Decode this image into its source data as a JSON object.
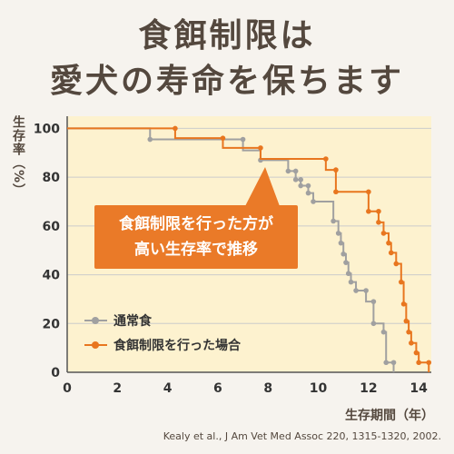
{
  "title_lines": [
    "食餌制限は",
    "愛犬の寿命を保ちます"
  ],
  "callout_lines": [
    "食餌制限を行った方が",
    "高い生存率で推移"
  ],
  "citation": "Kealy et al., J Am Vet Med Assoc 220, 1315-1320, 2002.",
  "colors": {
    "control": "#a0a0a0",
    "restricted": "#e8761f",
    "plot_bg": "#fdf2cf"
  },
  "chart_data": {
    "type": "line",
    "xlabel": "生存期間（年）",
    "ylabel": "生存率（%）",
    "xlim": [
      0,
      14.5
    ],
    "ylim": [
      0,
      105
    ],
    "xticks": [
      0,
      2,
      4,
      6,
      8,
      10,
      12,
      14
    ],
    "yticks": [
      0,
      20,
      40,
      60,
      80,
      100
    ],
    "legend_position": "bottom-left",
    "series": [
      {
        "name": "通常食",
        "color": "#a0a0a0",
        "points": [
          [
            0,
            100
          ],
          [
            3.3,
            100
          ],
          [
            3.3,
            95.5
          ],
          [
            7,
            95.5
          ],
          [
            7,
            91
          ],
          [
            7.7,
            91
          ],
          [
            7.7,
            87
          ],
          [
            8.8,
            87
          ],
          [
            8.8,
            82.5
          ],
          [
            9.1,
            82.5
          ],
          [
            9.1,
            79
          ],
          [
            9.3,
            79
          ],
          [
            9.3,
            76.5
          ],
          [
            9.6,
            76.5
          ],
          [
            9.6,
            73.5
          ],
          [
            9.8,
            73.5
          ],
          [
            9.8,
            70
          ],
          [
            10.6,
            70
          ],
          [
            10.6,
            62
          ],
          [
            10.8,
            62
          ],
          [
            10.8,
            57
          ],
          [
            10.9,
            57
          ],
          [
            10.9,
            53
          ],
          [
            11.0,
            53
          ],
          [
            11.0,
            48.5
          ],
          [
            11.1,
            48.5
          ],
          [
            11.1,
            45
          ],
          [
            11.2,
            45
          ],
          [
            11.2,
            40.5
          ],
          [
            11.3,
            40.5
          ],
          [
            11.3,
            37
          ],
          [
            11.5,
            37
          ],
          [
            11.5,
            33.5
          ],
          [
            11.9,
            33.5
          ],
          [
            11.9,
            29
          ],
          [
            12.2,
            29
          ],
          [
            12.2,
            20
          ],
          [
            12.6,
            20
          ],
          [
            12.6,
            16.5
          ],
          [
            12.7,
            16.5
          ],
          [
            12.7,
            4
          ],
          [
            13.0,
            4
          ],
          [
            13.0,
            0
          ]
        ],
        "markers": [
          [
            3.3,
            95.5
          ],
          [
            7,
            95.5
          ],
          [
            7.7,
            87
          ],
          [
            8.8,
            82.5
          ],
          [
            9.1,
            82.5
          ],
          [
            9.1,
            79
          ],
          [
            9.3,
            79
          ],
          [
            9.3,
            76.5
          ],
          [
            9.6,
            76.5
          ],
          [
            9.6,
            73.5
          ],
          [
            9.8,
            70
          ],
          [
            10.6,
            62
          ],
          [
            10.8,
            57
          ],
          [
            10.9,
            53
          ],
          [
            11.0,
            48.5
          ],
          [
            11.1,
            45
          ],
          [
            11.2,
            40.5
          ],
          [
            11.3,
            37
          ],
          [
            11.5,
            33.5
          ],
          [
            11.9,
            33.5
          ],
          [
            12.2,
            29
          ],
          [
            12.2,
            20
          ],
          [
            12.6,
            16.5
          ],
          [
            12.7,
            4
          ],
          [
            13.0,
            4
          ]
        ]
      },
      {
        "name": "食餌制限を行った場合",
        "color": "#e8761f",
        "points": [
          [
            0,
            100
          ],
          [
            4.3,
            100
          ],
          [
            4.3,
            96
          ],
          [
            6.2,
            96
          ],
          [
            6.2,
            92
          ],
          [
            7.7,
            92
          ],
          [
            7.7,
            87.5
          ],
          [
            10.3,
            87.5
          ],
          [
            10.3,
            83
          ],
          [
            10.7,
            83
          ],
          [
            10.7,
            74
          ],
          [
            12.0,
            74
          ],
          [
            12.0,
            66
          ],
          [
            12.4,
            66
          ],
          [
            12.4,
            61.5
          ],
          [
            12.6,
            61.5
          ],
          [
            12.6,
            57
          ],
          [
            12.8,
            57
          ],
          [
            12.8,
            53
          ],
          [
            12.9,
            53
          ],
          [
            12.9,
            49
          ],
          [
            13.1,
            49
          ],
          [
            13.1,
            44.5
          ],
          [
            13.3,
            44.5
          ],
          [
            13.3,
            37
          ],
          [
            13.4,
            37
          ],
          [
            13.4,
            28
          ],
          [
            13.5,
            28
          ],
          [
            13.5,
            21
          ],
          [
            13.6,
            21
          ],
          [
            13.6,
            16.5
          ],
          [
            13.7,
            16.5
          ],
          [
            13.7,
            12
          ],
          [
            13.9,
            12
          ],
          [
            13.9,
            8
          ],
          [
            14.0,
            8
          ],
          [
            14.0,
            4
          ],
          [
            14.4,
            4
          ],
          [
            14.4,
            0
          ]
        ],
        "markers": [
          [
            4.3,
            100
          ],
          [
            6.2,
            96
          ],
          [
            7.7,
            92
          ],
          [
            10.3,
            87.5
          ],
          [
            10.7,
            83
          ],
          [
            10.7,
            74
          ],
          [
            12.0,
            74
          ],
          [
            12.0,
            66
          ],
          [
            12.4,
            66
          ],
          [
            12.4,
            61.5
          ],
          [
            12.6,
            57
          ],
          [
            12.8,
            53
          ],
          [
            12.9,
            49
          ],
          [
            13.1,
            44.5
          ],
          [
            13.3,
            37
          ],
          [
            13.4,
            28
          ],
          [
            13.5,
            21
          ],
          [
            13.6,
            16.5
          ],
          [
            13.7,
            12
          ],
          [
            13.9,
            8
          ],
          [
            14.0,
            4
          ],
          [
            14.4,
            4
          ]
        ]
      }
    ]
  }
}
